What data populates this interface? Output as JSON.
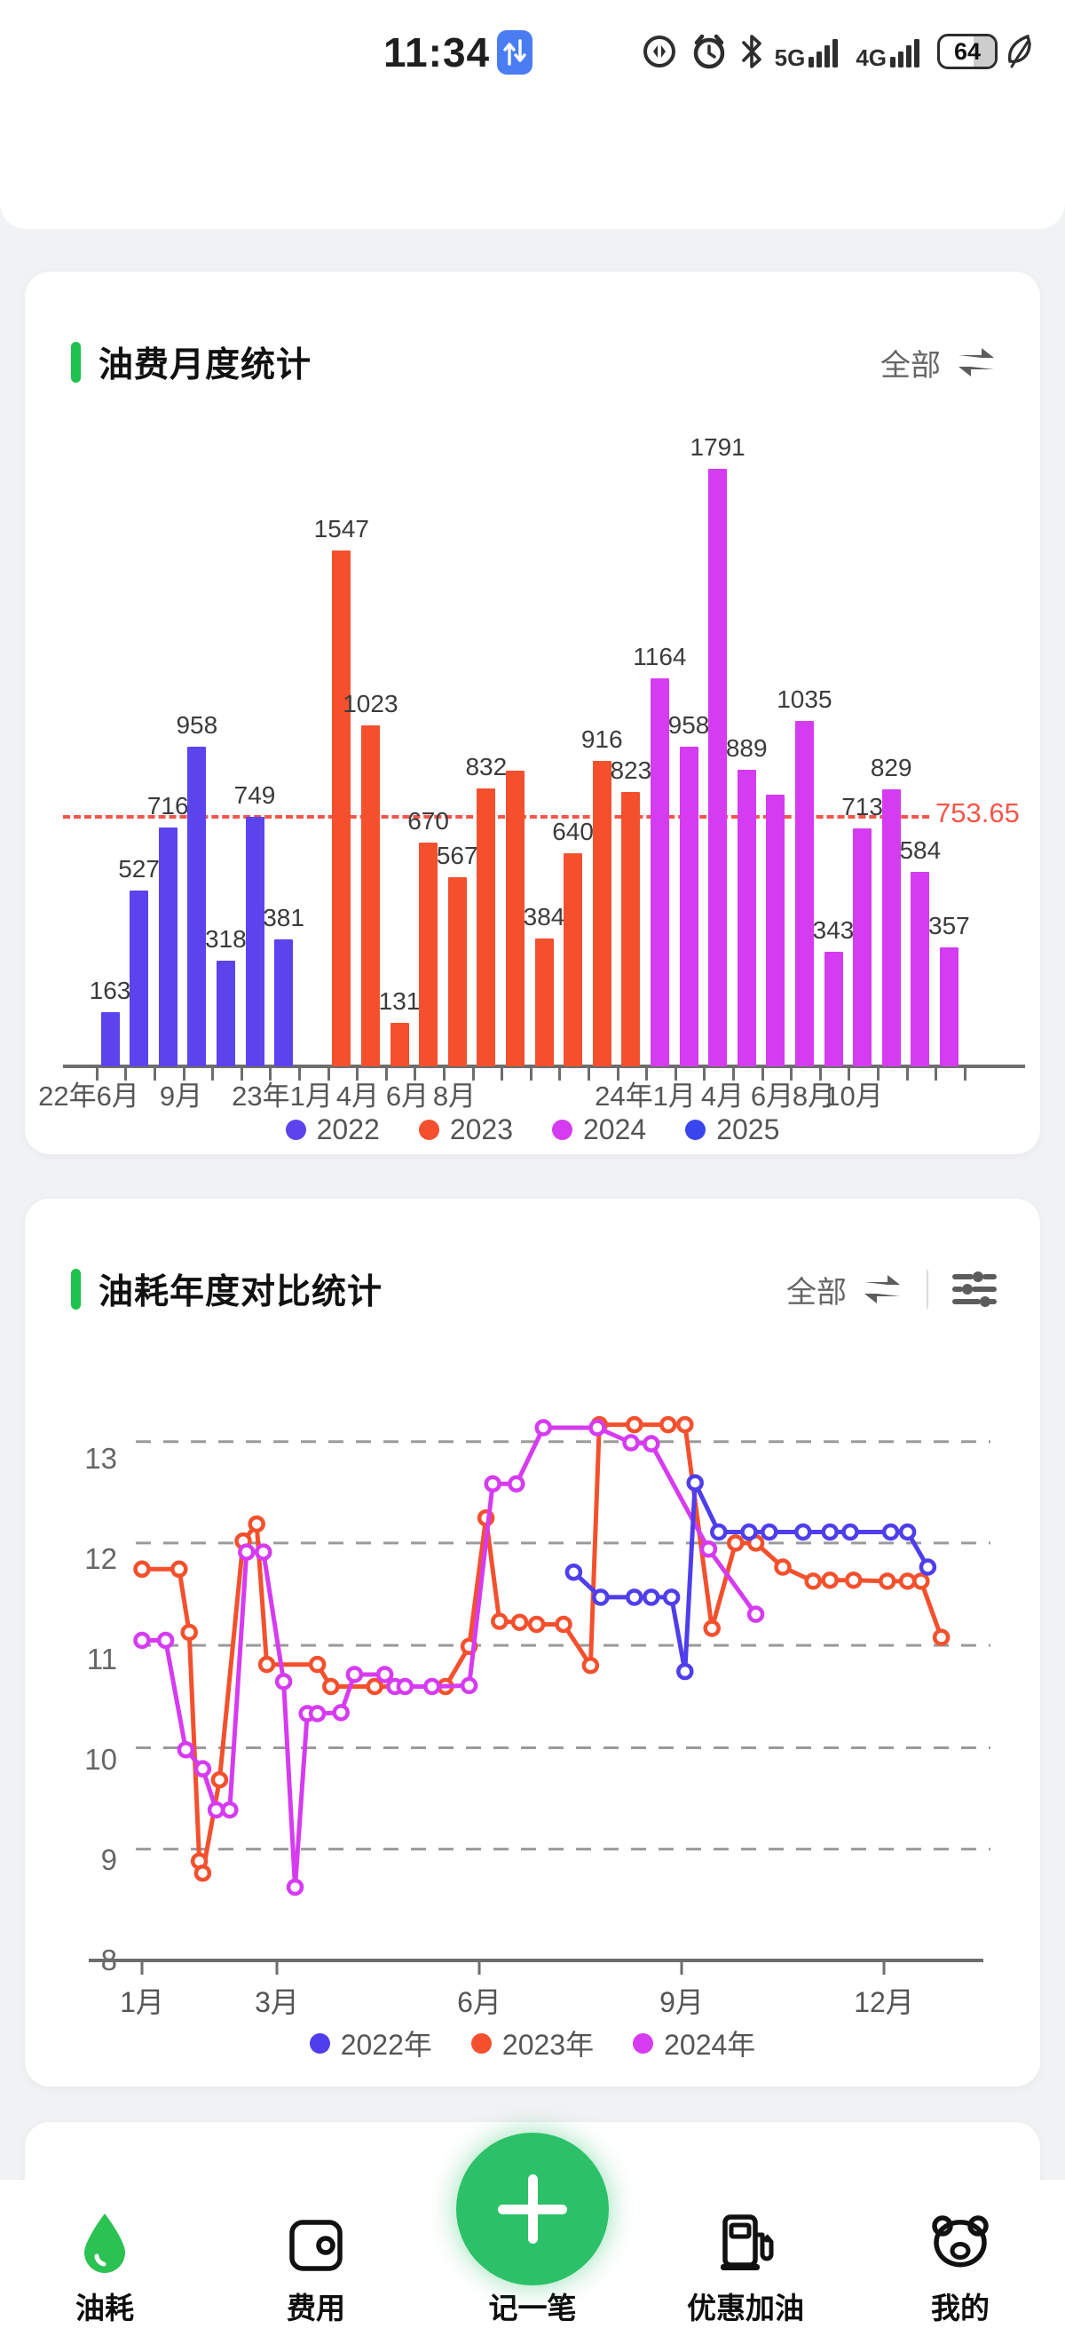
{
  "status": {
    "time": "11:34",
    "battery": "64",
    "icons": [
      "data-sync-icon",
      "alarm-icon",
      "bluetooth-icon",
      "signal-5g-icon",
      "signal-4g-icon",
      "battery-icon",
      "eco-leaf-icon"
    ],
    "signal_5g": "5G",
    "signal_4g": "4G"
  },
  "card1": {
    "title": "油费月度统计",
    "filter_label": "全部"
  },
  "card2": {
    "title": "油耗年度对比统计",
    "filter_label": "全部"
  },
  "chart_data": [
    {
      "type": "bar",
      "title": "油费月度统计",
      "avg": 753.65,
      "avg_label": "753.65",
      "ylim": [
        0,
        1900
      ],
      "bars": [
        {
          "v": 163,
          "year": "2022",
          "show": true
        },
        {
          "v": 527,
          "year": "2022",
          "show": true
        },
        {
          "v": 716,
          "year": "2022",
          "show": true
        },
        {
          "v": 958,
          "year": "2022",
          "show": true
        },
        {
          "v": 318,
          "year": "2022",
          "show": true
        },
        {
          "v": 749,
          "year": "2022",
          "show": true
        },
        {
          "v": 381,
          "year": "2022",
          "show": true
        },
        {
          "v": null,
          "year": "",
          "show": false
        },
        {
          "v": 1547,
          "year": "2023",
          "show": true
        },
        {
          "v": 1023,
          "year": "2023",
          "show": true
        },
        {
          "v": 131,
          "year": "2023",
          "show": true
        },
        {
          "v": 670,
          "year": "2023",
          "show": true
        },
        {
          "v": 567,
          "year": "2023",
          "show": true
        },
        {
          "v": 832,
          "year": "2023",
          "show": true
        },
        {
          "v": 887,
          "year": "2023",
          "show": false
        },
        {
          "v": 384,
          "year": "2023",
          "show": true
        },
        {
          "v": 640,
          "year": "2023",
          "show": true
        },
        {
          "v": 916,
          "year": "2023",
          "show": true
        },
        {
          "v": 823,
          "year": "2023",
          "show": true
        },
        {
          "v": 1164,
          "year": "2024",
          "show": true
        },
        {
          "v": 958,
          "year": "2024",
          "show": true
        },
        {
          "v": 1791,
          "year": "2024",
          "show": true
        },
        {
          "v": 889,
          "year": "2024",
          "show": true
        },
        {
          "v": 815,
          "year": "2024",
          "show": false
        },
        {
          "v": 1035,
          "year": "2024",
          "show": true
        },
        {
          "v": 343,
          "year": "2024",
          "show": true
        },
        {
          "v": 713,
          "year": "2024",
          "show": true
        },
        {
          "v": 829,
          "year": "2024",
          "show": true
        },
        {
          "v": 584,
          "year": "2024",
          "show": true
        },
        {
          "v": 357,
          "year": "2024",
          "show": true
        }
      ],
      "year_colors": {
        "2022": "#5b43ee",
        "2023": "#f4502d",
        "2024": "#d53bf0",
        "2025": "#3b45ed"
      },
      "x_ticks": [
        {
          "label": "22年6月",
          "x": 25
        },
        {
          "label": "9月",
          "x": 129
        },
        {
          "label": "23年1月",
          "x": 243
        },
        {
          "label": "4月",
          "x": 328
        },
        {
          "label": "6月",
          "x": 384
        },
        {
          "label": "8月",
          "x": 437
        },
        {
          "label": "24年1月",
          "x": 652
        },
        {
          "label": "4月",
          "x": 739
        },
        {
          "label": "6月",
          "x": 795
        },
        {
          "label": "8月",
          "x": 842
        },
        {
          "label": "10月",
          "x": 887
        }
      ],
      "legend": [
        {
          "label": "2022",
          "color": "#5b43ee"
        },
        {
          "label": "2023",
          "color": "#f4502d"
        },
        {
          "label": "2024",
          "color": "#d53bf0"
        },
        {
          "label": "2025",
          "color": "#3b45ed"
        }
      ]
    },
    {
      "type": "line",
      "title": "油耗年度对比统计",
      "y_ticks": [
        13,
        12,
        11,
        10,
        9,
        8
      ],
      "gridlines": [
        13.17,
        12.16,
        11.14,
        10.12,
        9.11
      ],
      "x_ticks": [
        {
          "label": "1月",
          "m": 1
        },
        {
          "label": "3月",
          "m": 3
        },
        {
          "label": "6月",
          "m": 6
        },
        {
          "label": "9月",
          "m": 9
        },
        {
          "label": "12月",
          "m": 12
        }
      ],
      "series": [
        {
          "name": "2023年",
          "color": "#f4502d",
          "points": [
            [
              1.0,
              11.9
            ],
            [
              1.55,
              11.9
            ],
            [
              1.7,
              11.27
            ],
            [
              1.85,
              8.99
            ],
            [
              1.9,
              8.87
            ],
            [
              2.15,
              9.8
            ],
            [
              2.5,
              12.18
            ],
            [
              2.7,
              12.35
            ],
            [
              2.85,
              10.95
            ],
            [
              3.6,
              10.95
            ],
            [
              3.8,
              10.73
            ],
            [
              4.45,
              10.73
            ],
            [
              5.5,
              10.73
            ],
            [
              5.85,
              11.13
            ],
            [
              6.1,
              12.41
            ],
            [
              6.3,
              11.38
            ],
            [
              6.6,
              11.37
            ],
            [
              6.85,
              11.35
            ],
            [
              7.25,
              11.35
            ],
            [
              7.65,
              10.94
            ],
            [
              7.78,
              13.34
            ],
            [
              8.3,
              13.34
            ],
            [
              8.8,
              13.34
            ],
            [
              9.05,
              13.34
            ],
            [
              9.45,
              11.31
            ],
            [
              9.8,
              12.16
            ],
            [
              10.1,
              12.16
            ],
            [
              10.5,
              11.92
            ],
            [
              10.95,
              11.78
            ],
            [
              11.2,
              11.79
            ],
            [
              11.55,
              11.79
            ],
            [
              12.05,
              11.78
            ],
            [
              12.35,
              11.78
            ],
            [
              12.55,
              11.78
            ],
            [
              12.85,
              11.22
            ]
          ]
        },
        {
          "name": "2024年",
          "color": "#d63bf1",
          "points": [
            [
              1.0,
              11.19
            ],
            [
              1.35,
              11.19
            ],
            [
              1.65,
              10.1
            ],
            [
              1.9,
              9.91
            ],
            [
              2.1,
              9.5
            ],
            [
              2.3,
              9.5
            ],
            [
              2.55,
              12.07
            ],
            [
              2.8,
              12.07
            ],
            [
              3.1,
              10.78
            ],
            [
              3.27,
              8.73
            ],
            [
              3.45,
              10.46
            ],
            [
              3.6,
              10.46
            ],
            [
              3.95,
              10.47
            ],
            [
              4.15,
              10.85
            ],
            [
              4.6,
              10.85
            ],
            [
              4.75,
              10.73
            ],
            [
              4.9,
              10.73
            ],
            [
              5.3,
              10.73
            ],
            [
              5.85,
              10.74
            ],
            [
              6.2,
              12.75
            ],
            [
              6.55,
              12.75
            ],
            [
              6.95,
              13.31
            ],
            [
              7.75,
              13.31
            ],
            [
              8.25,
              13.16
            ],
            [
              8.55,
              13.15
            ],
            [
              9.4,
              12.1
            ],
            [
              10.1,
              11.45
            ]
          ]
        },
        {
          "name": "2022年",
          "color": "#4e3eec",
          "points": [
            [
              7.4,
              11.87
            ],
            [
              7.8,
              11.62
            ],
            [
              8.3,
              11.62
            ],
            [
              8.55,
              11.62
            ],
            [
              8.85,
              11.62
            ],
            [
              9.05,
              10.88
            ],
            [
              9.2,
              12.76
            ],
            [
              9.55,
              12.27
            ],
            [
              10.0,
              12.27
            ],
            [
              10.3,
              12.27
            ],
            [
              10.8,
              12.27
            ],
            [
              11.2,
              12.27
            ],
            [
              11.5,
              12.27
            ],
            [
              12.1,
              12.27
            ],
            [
              12.35,
              12.27
            ],
            [
              12.65,
              11.92
            ]
          ]
        }
      ],
      "legend": [
        {
          "label": "2022年",
          "color": "#4e3eec"
        },
        {
          "label": "2023年",
          "color": "#f4502d"
        },
        {
          "label": "2024年",
          "color": "#d63bf1"
        }
      ]
    }
  ],
  "nav": {
    "items": [
      {
        "label": "油耗",
        "icon": "fuel-drop-icon",
        "active": true
      },
      {
        "label": "费用",
        "icon": "wallet-icon",
        "active": false
      },
      {
        "label": "记一笔",
        "icon": "add-record-button",
        "active": false
      },
      {
        "label": "优惠加油",
        "icon": "gas-pump-icon",
        "active": false
      },
      {
        "label": "我的",
        "icon": "profile-bear-icon",
        "active": false
      }
    ]
  },
  "colors": {
    "accent_green": "#1ec24e",
    "nav_button_green": "#2cc169",
    "avg_line_red": "#f4564a",
    "page_bg": "#f1f2f4"
  }
}
